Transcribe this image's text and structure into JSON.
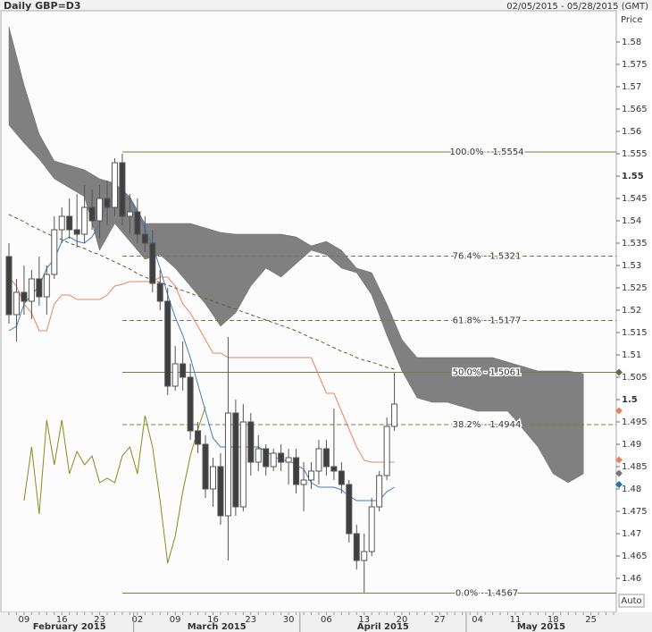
{
  "chart_data": {
    "type": "candlestick",
    "title": "Daily GBP=D3",
    "date_range": "02/05/2015 - 05/28/2015 (GMT)",
    "y_axis_label": "Price",
    "scale_button": "Auto",
    "months": [
      "February 2015",
      "March 2015",
      "April 2015",
      "May 2015"
    ],
    "categories": [
      null,
      null,
      "09",
      null,
      null,
      null,
      null,
      "16",
      null,
      null,
      null,
      null,
      "23",
      null,
      null,
      null,
      null,
      "02",
      null,
      null,
      null,
      null,
      "09",
      null,
      null,
      null,
      null,
      "16",
      null,
      null,
      null,
      null,
      "23",
      null,
      null,
      null,
      null,
      "30",
      null,
      null,
      null,
      null,
      "06",
      null,
      null,
      null,
      null,
      "13",
      null,
      null,
      null,
      null,
      "20",
      null,
      null,
      null,
      null,
      "27",
      null,
      null,
      null,
      null,
      "04",
      null,
      null,
      null,
      null,
      "11",
      null,
      null,
      null,
      null,
      "18",
      null,
      null,
      null,
      null,
      "25",
      null,
      null,
      null
    ],
    "ylim": [
      1.4524,
      1.587
    ],
    "yticks": [
      1.46,
      1.465,
      1.47,
      1.475,
      1.48,
      1.485,
      1.49,
      1.495,
      1.5,
      1.505,
      1.51,
      1.515,
      1.52,
      1.525,
      1.53,
      1.535,
      1.54,
      1.545,
      1.55,
      1.555,
      1.56,
      1.565,
      1.57,
      1.575,
      1.58
    ],
    "grid": false,
    "up_color": "#ffffff",
    "down_color": "#404040",
    "wick_color": "#555555",
    "open": [
      1.532,
      1.519,
      1.524,
      1.522,
      1.527,
      1.523,
      1.528,
      1.538,
      1.541,
      1.538,
      1.537,
      1.543,
      1.54,
      1.545,
      1.543,
      1.553,
      1.541,
      1.542,
      1.537,
      1.535,
      1.526,
      1.522,
      1.503,
      1.508,
      1.505,
      1.493,
      1.49,
      1.48,
      1.485,
      1.474,
      1.497,
      1.476,
      1.495,
      1.486,
      1.489,
      1.485,
      1.488,
      1.486,
      1.487,
      1.481,
      1.482,
      1.484,
      1.489,
      1.485,
      1.484,
      1.481,
      1.47,
      1.464,
      1.466,
      1.476,
      1.483,
      1.494,
      null,
      null,
      null,
      null,
      null,
      null,
      null,
      null,
      null,
      null,
      null,
      null,
      null,
      null,
      null,
      null,
      null,
      null,
      null,
      null,
      null,
      null,
      null,
      null,
      null,
      null,
      null,
      null,
      null
    ],
    "high": [
      1.535,
      1.527,
      1.53,
      1.529,
      1.532,
      1.53,
      1.541,
      1.543,
      1.545,
      1.546,
      1.548,
      1.547,
      1.548,
      1.549,
      1.554,
      1.555,
      1.546,
      1.545,
      1.541,
      1.538,
      1.529,
      1.525,
      1.512,
      1.513,
      1.508,
      1.495,
      1.492,
      1.487,
      1.488,
      1.514,
      1.5,
      1.499,
      1.497,
      1.492,
      1.49,
      1.489,
      1.49,
      1.489,
      1.489,
      1.486,
      1.486,
      1.491,
      1.491,
      1.498,
      1.486,
      1.482,
      1.472,
      1.47,
      1.478,
      1.484,
      1.496,
      1.506,
      null,
      null,
      null,
      null,
      null,
      null,
      null,
      null,
      null,
      null,
      null,
      null,
      null,
      null,
      null,
      null,
      null,
      null,
      null,
      null,
      null,
      null,
      null,
      null,
      null,
      null,
      null,
      null,
      null
    ],
    "low": [
      1.517,
      1.513,
      1.519,
      1.518,
      1.521,
      1.519,
      1.527,
      1.535,
      1.536,
      1.534,
      1.535,
      1.538,
      1.536,
      1.539,
      1.541,
      1.539,
      1.537,
      1.535,
      1.533,
      1.524,
      1.52,
      1.501,
      1.502,
      1.502,
      1.491,
      1.488,
      1.478,
      1.476,
      1.472,
      1.464,
      1.474,
      1.475,
      1.483,
      1.484,
      1.483,
      1.484,
      1.484,
      1.481,
      1.479,
      1.475,
      1.48,
      1.481,
      1.483,
      1.482,
      1.479,
      1.468,
      1.462,
      1.4567,
      1.465,
      1.475,
      1.482,
      1.493,
      null,
      null,
      null,
      null,
      null,
      null,
      null,
      null,
      null,
      null,
      null,
      null,
      null,
      null,
      null,
      null,
      null,
      null,
      null,
      null,
      null,
      null,
      null,
      null,
      null,
      null,
      null,
      null,
      null
    ],
    "close": [
      1.519,
      1.524,
      1.522,
      1.527,
      1.523,
      1.528,
      1.538,
      1.541,
      1.538,
      1.537,
      1.543,
      1.54,
      1.545,
      1.543,
      1.553,
      1.541,
      1.542,
      1.537,
      1.535,
      1.526,
      1.522,
      1.503,
      1.508,
      1.505,
      1.493,
      1.49,
      1.48,
      1.485,
      1.474,
      1.497,
      1.476,
      1.495,
      1.486,
      1.489,
      1.485,
      1.488,
      1.486,
      1.487,
      1.481,
      1.482,
      1.484,
      1.489,
      1.485,
      1.484,
      1.481,
      1.47,
      1.464,
      1.466,
      1.476,
      1.483,
      1.494,
      1.499,
      null,
      null,
      null,
      null,
      null,
      null,
      null,
      null,
      null,
      null,
      null,
      null,
      null,
      null,
      null,
      null,
      null,
      null,
      null,
      null,
      null,
      null,
      null,
      null,
      null,
      null,
      null,
      null,
      null
    ],
    "cloud": {
      "color": "#808080",
      "upper": [
        1.5834,
        1.5769,
        1.5704,
        1.5649,
        1.5594,
        1.5564,
        1.5534,
        1.5529,
        1.5524,
        1.5519,
        1.5514,
        1.5504,
        1.5494,
        1.5489,
        1.5484,
        1.5469,
        1.5454,
        1.5424,
        1.5394,
        1.5394,
        1.5394,
        1.5394,
        1.5394,
        1.5394,
        1.5394,
        1.5389,
        1.5384,
        1.5379,
        1.5374,
        1.5372,
        1.537,
        1.537,
        1.537,
        1.537,
        1.537,
        1.537,
        1.537,
        1.5367,
        1.5364,
        1.5354,
        1.5344,
        1.5349,
        1.5354,
        1.5344,
        1.5334,
        1.5314,
        1.5294,
        1.5289,
        1.5284,
        1.5249,
        1.5214,
        1.5174,
        1.5134,
        1.5114,
        1.5094,
        1.5094,
        1.5094,
        1.5094,
        1.5094,
        1.5094,
        1.5094,
        1.5094,
        1.5094,
        1.5094,
        1.5094,
        1.5089,
        1.5084,
        1.5079,
        1.5074,
        1.5069,
        1.5064,
        1.5064,
        1.5064,
        1.5064,
        1.5064,
        1.5061,
        1.5058,
        null,
        null,
        null,
        null
      ],
      "lower": [
        1.5614,
        1.5594,
        1.5574,
        1.5556,
        1.5538,
        1.5516,
        1.5494,
        1.5484,
        1.5474,
        1.5464,
        1.5454,
        1.5394,
        1.5334,
        1.5364,
        1.5394,
        1.5374,
        1.5354,
        1.5334,
        1.5314,
        1.5319,
        1.5324,
        1.5309,
        1.5294,
        1.5274,
        1.5254,
        1.5234,
        1.5214,
        1.5189,
        1.5164,
        1.5179,
        1.5194,
        1.5224,
        1.5254,
        1.5274,
        1.5294,
        1.5284,
        1.5274,
        1.5289,
        1.5304,
        1.5319,
        1.5334,
        1.5329,
        1.5324,
        1.5309,
        1.5294,
        1.5289,
        1.5284,
        1.5259,
        1.5234,
        1.5189,
        1.5144,
        1.5104,
        1.5064,
        1.5034,
        1.5004,
        1.4999,
        1.4994,
        1.4994,
        1.4994,
        1.4989,
        1.4984,
        1.4979,
        1.4974,
        1.4974,
        1.4974,
        1.4974,
        1.4974,
        1.4954,
        1.4934,
        1.4914,
        1.4894,
        1.4864,
        1.4834,
        1.4824,
        1.4814,
        1.4824,
        1.4834,
        null,
        null,
        null,
        null
      ]
    },
    "lines": [
      {
        "color": "#3a7fc0",
        "dashed": false,
        "values": [
          1.5154,
          1.5164,
          1.5214,
          1.5234,
          1.5254,
          1.5294,
          1.5314,
          1.5354,
          1.5364,
          1.5354,
          1.535,
          1.5364,
          1.5394,
          1.5444,
          1.5444,
          1.5444,
          1.545,
          1.5414,
          1.5384,
          1.5344,
          1.5294,
          1.5234,
          1.5184,
          1.5144,
          1.5094,
          1.5034,
          1.4974,
          1.4914,
          1.4894,
          1.4894,
          1.4894,
          1.4894,
          1.4894,
          1.4894,
          1.4884,
          1.4874,
          1.4864,
          1.4864,
          1.4854,
          1.4844,
          1.4814,
          1.4804,
          1.4804,
          1.4804,
          1.4798,
          1.4784,
          1.4774,
          1.4774,
          1.4774,
          1.4774,
          1.4794,
          1.4804,
          null,
          null,
          null,
          null,
          null,
          null,
          null,
          null,
          null,
          null,
          null,
          null,
          null,
          null,
          null,
          null,
          null,
          null,
          null,
          null,
          null,
          null,
          null,
          null,
          null,
          null,
          null,
          null,
          null
        ]
      },
      {
        "color": "#e8845a",
        "dashed": false,
        "values": [
          1.5274,
          1.5254,
          1.5214,
          1.5194,
          1.5154,
          1.5154,
          1.5214,
          1.5234,
          1.5234,
          1.5224,
          1.5224,
          1.5224,
          1.5224,
          1.5234,
          1.5254,
          1.5258,
          1.5264,
          1.5264,
          1.5264,
          1.5264,
          1.5274,
          1.5274,
          1.5254,
          1.5214,
          1.5194,
          1.5164,
          1.5134,
          1.5104,
          1.5104,
          1.5094,
          1.5094,
          1.5094,
          1.5094,
          1.5094,
          1.5094,
          1.5094,
          1.5094,
          1.5094,
          1.5094,
          1.5094,
          1.5094,
          1.5054,
          1.5014,
          1.5014,
          1.4974,
          1.4934,
          1.4894,
          1.4864,
          1.486,
          1.486,
          1.486,
          1.486,
          null,
          null,
          null,
          null,
          null,
          null,
          null,
          null,
          null,
          null,
          null,
          null,
          null,
          null,
          null,
          null,
          null,
          null,
          null,
          null,
          null,
          null,
          null,
          null,
          null,
          null,
          null,
          null,
          null
        ]
      },
      {
        "color": "#6b5a3a",
        "dashed": true,
        "values": [
          1.5414,
          1.5406,
          1.5398,
          1.5388,
          1.538,
          1.5372,
          1.5364,
          1.5358,
          1.535,
          1.5344,
          1.5338,
          1.533,
          1.5324,
          1.5316,
          1.5308,
          1.53,
          1.5292,
          1.5282,
          1.5274,
          1.5268,
          1.5262,
          1.5256,
          1.525,
          1.5244,
          1.5238,
          1.5232,
          1.5226,
          1.522,
          1.5214,
          1.5208,
          1.5202,
          1.5196,
          1.519,
          1.5184,
          1.5178,
          1.5172,
          1.5166,
          1.516,
          1.5154,
          1.5146,
          1.5138,
          1.5132,
          1.5124,
          1.5116,
          1.5108,
          1.5102,
          1.5094,
          1.5088,
          1.5084,
          1.5078,
          1.5072,
          1.5068,
          null,
          null,
          null,
          null,
          null,
          null,
          null,
          null,
          null,
          null,
          null,
          null,
          null,
          null,
          null,
          null,
          null,
          null,
          null,
          null,
          null,
          null,
          null,
          null,
          null,
          null,
          null,
          null,
          null
        ]
      },
      {
        "color": "#8a8a1e",
        "dashed": false,
        "values": [
          null,
          null,
          1.4774,
          1.4894,
          1.4744,
          1.4954,
          1.4854,
          1.4954,
          1.4834,
          1.4884,
          1.4854,
          1.4874,
          1.4814,
          1.4824,
          1.4814,
          1.4874,
          1.4894,
          1.4834,
          1.4964,
          1.4894,
          1.4774,
          1.4634,
          1.4694,
          1.4794,
          1.4874,
          1.4934,
          1.4984,
          null,
          null,
          null,
          null,
          null,
          null,
          null,
          null,
          null,
          null,
          null,
          null,
          null,
          null,
          null,
          null,
          null,
          null,
          null,
          null,
          null,
          null,
          null,
          null,
          null,
          null,
          null,
          null,
          null,
          null,
          null,
          null,
          null,
          null,
          null,
          null,
          null,
          null,
          null,
          null,
          null,
          null,
          null,
          null,
          null,
          null,
          null,
          null,
          null,
          null,
          null,
          null,
          null,
          null
        ]
      }
    ],
    "fib_color": "#7a7a50",
    "fib_levels": [
      {
        "value": 1.5554,
        "label": "100.0% - 1.5554",
        "dashed": false
      },
      {
        "value": 1.5321,
        "label": "76.4% - 1.5321",
        "dashed": true
      },
      {
        "value": 1.5177,
        "label": "61.8% - 1.5177",
        "dashed": true
      },
      {
        "value": 1.5061,
        "label": "50.0% - 1.5061",
        "dashed": false
      },
      {
        "value": 1.4944,
        "label": "38.2% - 1.4944",
        "dashed": true
      },
      {
        "value": 1.4567,
        "label": "0.0% - 1.4567",
        "dashed": false
      }
    ],
    "axis_markers": [
      {
        "value": 1.5061,
        "color": "#6b6b3a"
      },
      {
        "value": 1.4975,
        "color": "#e8845a"
      },
      {
        "value": 1.4865,
        "color": "#e8845a"
      },
      {
        "value": 1.4835,
        "color": "#777777"
      },
      {
        "value": 1.481,
        "color": "#2a6fa8"
      }
    ]
  }
}
